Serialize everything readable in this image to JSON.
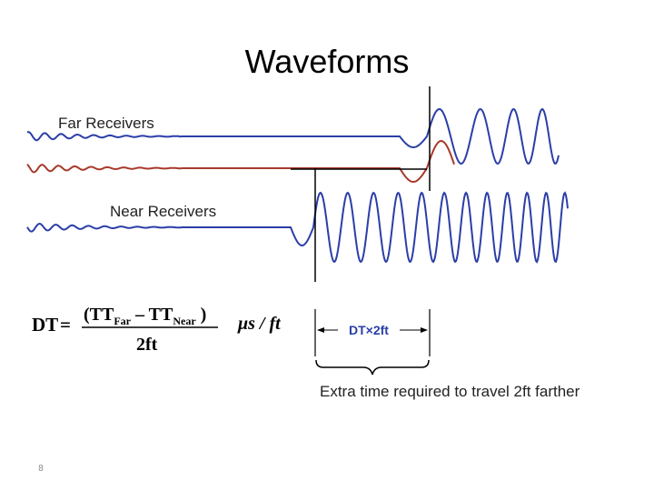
{
  "title": "Waveforms",
  "labels": {
    "far": "Far Receivers",
    "near": "Near Receivers"
  },
  "formula": {
    "lhs": "DT",
    "equals": "=",
    "open": "(TT",
    "far_sub": "Far",
    "minus": " – TT",
    "near_sub": "Near",
    "close": " )",
    "denominator": "2ft",
    "units": "μs / ft"
  },
  "annotation": {
    "interval": "DT×2ft",
    "caption": "Extra time required to travel 2ft farther"
  },
  "page_number": "8"
}
